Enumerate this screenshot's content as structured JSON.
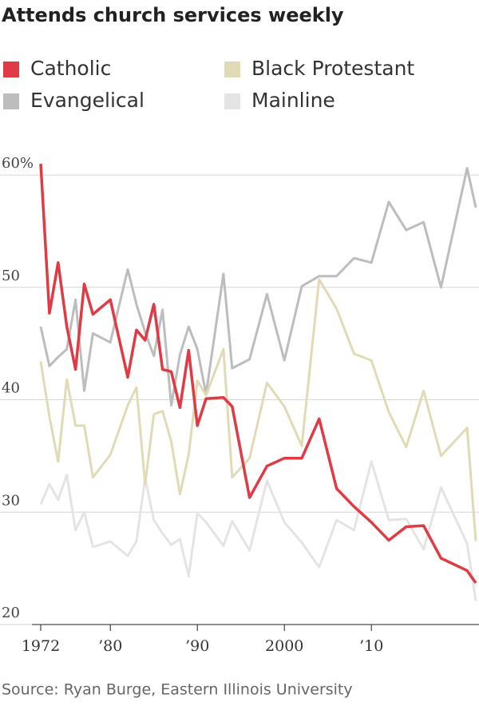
{
  "chart_data": {
    "type": "line",
    "title": "Attends church services weekly",
    "source": "Source: Ryan Burge, Eastern Illinois University",
    "x": [
      1972,
      1973,
      1974,
      1975,
      1976,
      1977,
      1978,
      1980,
      1982,
      1983,
      1984,
      1985,
      1986,
      1987,
      1988,
      1989,
      1990,
      1991,
      1993,
      1994,
      1996,
      1998,
      2000,
      2002,
      2004,
      2006,
      2008,
      2010,
      2012,
      2014,
      2016,
      2018,
      2021,
      2022
    ],
    "series": [
      {
        "name": "Catholic",
        "color": "#e03a45",
        "values": [
          61,
          47.7,
          52.2,
          46.5,
          42.7,
          50.3,
          47.6,
          48.9,
          42.0,
          46.2,
          45.3,
          48.5,
          42.7,
          42.5,
          39.3,
          44.4,
          37.7,
          40.1,
          40.2,
          39.4,
          31.3,
          34.1,
          34.8,
          34.8,
          38.3,
          32.1,
          30.5,
          29.1,
          27.5,
          28.7,
          28.8,
          25.9,
          24.8,
          23.7
        ]
      },
      {
        "name": "Black Protestant",
        "color": "#e0dbb5",
        "values": [
          43.4,
          38.5,
          34.5,
          41.8,
          37.7,
          37.7,
          33.1,
          35.1,
          39.5,
          41.1,
          32.5,
          38.7,
          39.0,
          36.3,
          31.6,
          35.1,
          41.7,
          40.4,
          44.5,
          33.1,
          34.8,
          41.5,
          39.4,
          35.9,
          50.7,
          48.1,
          44.1,
          43.5,
          38.9,
          35.8,
          40.8,
          35.0,
          37.5,
          27.4
        ]
      },
      {
        "name": "Evangelical",
        "color": "#bdbdbd",
        "values": [
          46.5,
          43.0,
          43.8,
          44.5,
          48.9,
          40.8,
          45.9,
          45.1,
          51.6,
          48.5,
          46.0,
          43.9,
          48.0,
          39.5,
          44.0,
          46.5,
          44.5,
          40.5,
          51.2,
          42.8,
          43.6,
          49.4,
          43.5,
          50.1,
          51.0,
          51.0,
          52.6,
          52.2,
          57.6,
          55.1,
          55.8,
          50.0,
          60.6,
          57.1
        ]
      },
      {
        "name": "Mainline",
        "color": "#e4e4e4",
        "values": [
          30.7,
          32.5,
          31.1,
          33.3,
          28.4,
          30.0,
          26.9,
          27.4,
          26.1,
          27.4,
          33.0,
          29.3,
          28.1,
          27.1,
          27.6,
          24.3,
          29.9,
          29.1,
          27.0,
          29.2,
          26.6,
          32.8,
          29.1,
          27.3,
          25.1,
          29.3,
          28.4,
          34.5,
          29.3,
          29.4,
          26.7,
          32.2,
          27.2,
          22.1
        ]
      }
    ],
    "xlim": [
      1972,
      2022
    ],
    "xticks": [
      1972,
      {
        "value": 1980,
        "label": "’80"
      },
      {
        "value": 1990,
        "label": "’90"
      },
      2000,
      {
        "value": 2010,
        "label": "’10"
      }
    ],
    "ylim": [
      20,
      61
    ],
    "yticks": [
      20,
      30,
      40,
      50,
      {
        "value": 60,
        "label": "60%"
      }
    ],
    "grid": true
  }
}
